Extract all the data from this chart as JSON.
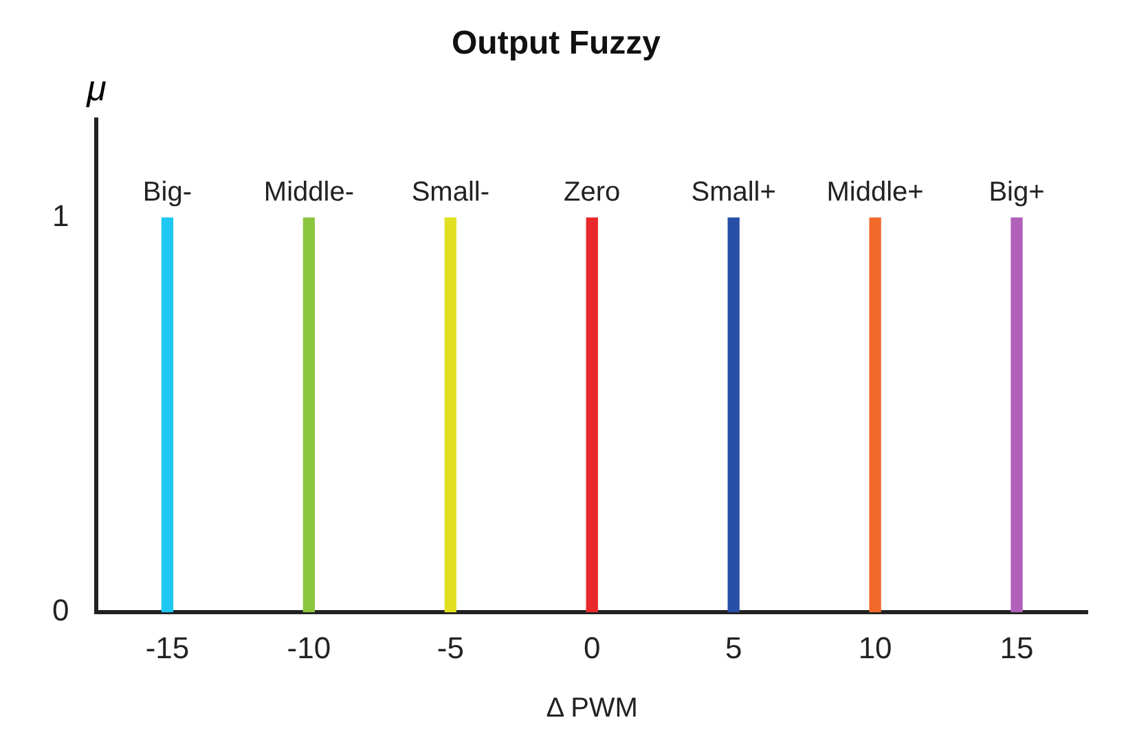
{
  "chart_data": {
    "type": "bar",
    "title": "Output Fuzzy",
    "xlabel": "Δ PWM",
    "ylabel": "μ",
    "categories": [
      "-15",
      "-10",
      "-5",
      "0",
      "5",
      "10",
      "15"
    ],
    "series": [
      {
        "name": "Big-",
        "color": "#1ec8f0",
        "values": [
          1,
          null,
          null,
          null,
          null,
          null,
          null
        ]
      },
      {
        "name": "Middle-",
        "color": "#8cc63f",
        "values": [
          null,
          1,
          null,
          null,
          null,
          null,
          null
        ]
      },
      {
        "name": "Small-",
        "color": "#e0e020",
        "values": [
          null,
          null,
          1,
          null,
          null,
          null,
          null
        ]
      },
      {
        "name": "Zero",
        "color": "#e8282a",
        "values": [
          null,
          null,
          null,
          1,
          null,
          null,
          null
        ]
      },
      {
        "name": "Small+",
        "color": "#2850a8",
        "values": [
          null,
          null,
          null,
          null,
          1,
          null,
          null
        ]
      },
      {
        "name": "Middle+",
        "color": "#f26a2a",
        "values": [
          null,
          null,
          null,
          null,
          null,
          1,
          null
        ]
      },
      {
        "name": "Big+",
        "color": "#b060b8",
        "values": [
          null,
          null,
          null,
          null,
          null,
          null,
          1
        ]
      }
    ],
    "ylim": [
      0,
      1.25
    ],
    "yticks": [
      0,
      1
    ],
    "grid": false,
    "legend": false
  }
}
